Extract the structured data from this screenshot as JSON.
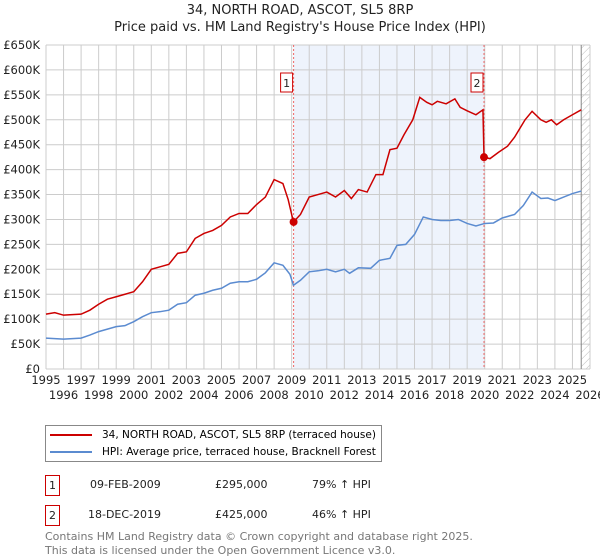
{
  "title": "34, NORTH ROAD, ASCOT, SL5 8RP",
  "subtitle": "Price paid vs. HM Land Registry's House Price Index (HPI)",
  "colors": {
    "property": "#cc0000",
    "hpi": "#5b8bd0",
    "shade": "#eef3fc",
    "grid": "#cccccc"
  },
  "chart_data": {
    "type": "line",
    "title": "Price paid vs. HM Land Registry's House Price Index (HPI)",
    "xlabel": "",
    "ylabel": "",
    "xlim": [
      1995,
      2026
    ],
    "ylim": [
      0,
      650000
    ],
    "grid": true,
    "legend_placement": "below",
    "x_ticks": [
      "1995",
      "1996",
      "1997",
      "1998",
      "1999",
      "2000",
      "2001",
      "2002",
      "2003",
      "2004",
      "2005",
      "2006",
      "2007",
      "2008",
      "2009",
      "2010",
      "2011",
      "2012",
      "2013",
      "2014",
      "2015",
      "2016",
      "2017",
      "2018",
      "2019",
      "2020",
      "2021",
      "2022",
      "2023",
      "2024",
      "2025",
      "2026"
    ],
    "y_ticks": [
      {
        "v": 0,
        "label": "£0"
      },
      {
        "v": 50000,
        "label": "£50K"
      },
      {
        "v": 100000,
        "label": "£100K"
      },
      {
        "v": 150000,
        "label": "£150K"
      },
      {
        "v": 200000,
        "label": "£200K"
      },
      {
        "v": 250000,
        "label": "£250K"
      },
      {
        "v": 300000,
        "label": "£300K"
      },
      {
        "v": 350000,
        "label": "£350K"
      },
      {
        "v": 400000,
        "label": "£400K"
      },
      {
        "v": 450000,
        "label": "£450K"
      },
      {
        "v": 500000,
        "label": "£500K"
      },
      {
        "v": 550000,
        "label": "£550K"
      },
      {
        "v": 600000,
        "label": "£600K"
      },
      {
        "v": 650000,
        "label": "£650K"
      }
    ],
    "series": [
      {
        "name": "34, NORTH ROAD, ASCOT, SL5 8RP (terraced house)",
        "color": "#cc0000",
        "x": [
          1995,
          1995.5,
          1996,
          1997,
          1997.5,
          1998,
          1998.5,
          1999,
          1999.5,
          2000,
          2000.5,
          2001,
          2001.5,
          2002,
          2002.5,
          2003,
          2003.5,
          2004,
          2004.5,
          2005,
          2005.5,
          2006,
          2006.5,
          2007,
          2007.5,
          2008,
          2008.5,
          2008.8,
          2009.1,
          2009.5,
          2010,
          2010.5,
          2011,
          2011.5,
          2012,
          2012.4,
          2012.8,
          2013.3,
          2013.8,
          2014.2,
          2014.6,
          2015,
          2015.4,
          2015.9,
          2016.3,
          2016.7,
          2017,
          2017.3,
          2017.8,
          2018.3,
          2018.6,
          2019,
          2019.5,
          2019.9,
          2019.96,
          2020.3,
          2020.8,
          2021.3,
          2021.7,
          2022.3,
          2022.7,
          2023.2,
          2023.5,
          2023.8,
          2024.1,
          2024.5,
          2025,
          2025.5
        ],
        "y": [
          110000,
          113000,
          108000,
          110000,
          118000,
          130000,
          140000,
          145000,
          150000,
          155000,
          175000,
          200000,
          205000,
          210000,
          232000,
          235000,
          262000,
          272000,
          278000,
          288000,
          305000,
          312000,
          312000,
          330000,
          345000,
          380000,
          372000,
          340000,
          295000,
          310000,
          345000,
          350000,
          355000,
          345000,
          358000,
          342000,
          360000,
          355000,
          390000,
          390000,
          440000,
          443000,
          470000,
          500000,
          545000,
          535000,
          530000,
          537000,
          532000,
          542000,
          525000,
          518000,
          510000,
          520000,
          425000,
          422000,
          435000,
          447000,
          465000,
          500000,
          517000,
          500000,
          495000,
          500000,
          490000,
          500000,
          510000,
          520000
        ]
      },
      {
        "name": "HPI: Average price, terraced house, Bracknell Forest",
        "color": "#5b8bd0",
        "x": [
          1995,
          1996,
          1997,
          1997.5,
          1998,
          1998.5,
          1999,
          1999.5,
          2000,
          2000.5,
          2001,
          2001.5,
          2002,
          2002.5,
          2003,
          2003.5,
          2004,
          2004.5,
          2005,
          2005.5,
          2006,
          2006.5,
          2007,
          2007.5,
          2008,
          2008.5,
          2008.9,
          2009.1,
          2009.5,
          2010,
          2010.5,
          2011,
          2011.5,
          2012,
          2012.3,
          2012.8,
          2013.5,
          2014,
          2014.6,
          2015,
          2015.5,
          2016,
          2016.5,
          2017,
          2017.5,
          2018,
          2018.5,
          2019,
          2019.5,
          2020,
          2020.5,
          2021,
          2021.7,
          2022.2,
          2022.7,
          2023.2,
          2023.6,
          2024,
          2024.5,
          2025,
          2025.5
        ],
        "y": [
          62000,
          60000,
          62000,
          68000,
          75000,
          80000,
          85000,
          87000,
          95000,
          105000,
          113000,
          115000,
          118000,
          130000,
          133000,
          148000,
          152000,
          158000,
          162000,
          172000,
          175000,
          175000,
          180000,
          193000,
          213000,
          208000,
          190000,
          168000,
          178000,
          195000,
          197000,
          200000,
          195000,
          200000,
          192000,
          203000,
          202000,
          218000,
          222000,
          248000,
          250000,
          270000,
          305000,
          300000,
          298000,
          298000,
          300000,
          292000,
          287000,
          292000,
          293000,
          303000,
          310000,
          328000,
          355000,
          342000,
          343000,
          338000,
          345000,
          352000,
          357000
        ]
      }
    ],
    "annotations": [
      {
        "label": "1",
        "x": 2009.11,
        "y": 295000
      },
      {
        "label": "2",
        "x": 2019.96,
        "y": 425000
      }
    ],
    "shaded_range": [
      2009.11,
      2019.96
    ],
    "hatched_from": 2025.5
  },
  "legend": {
    "property": "34, NORTH ROAD, ASCOT, SL5 8RP (terraced house)",
    "hpi": "HPI: Average price, terraced house, Bracknell Forest"
  },
  "sales": [
    {
      "num": "1",
      "date": "09-FEB-2009",
      "price": "£295,000",
      "delta": "79% ↑ HPI"
    },
    {
      "num": "2",
      "date": "18-DEC-2019",
      "price": "£425,000",
      "delta": "46% ↑ HPI"
    }
  ],
  "footer": {
    "line1": "Contains HM Land Registry data © Crown copyright and database right 2025.",
    "line2": "This data is licensed under the Open Government Licence v3.0."
  }
}
